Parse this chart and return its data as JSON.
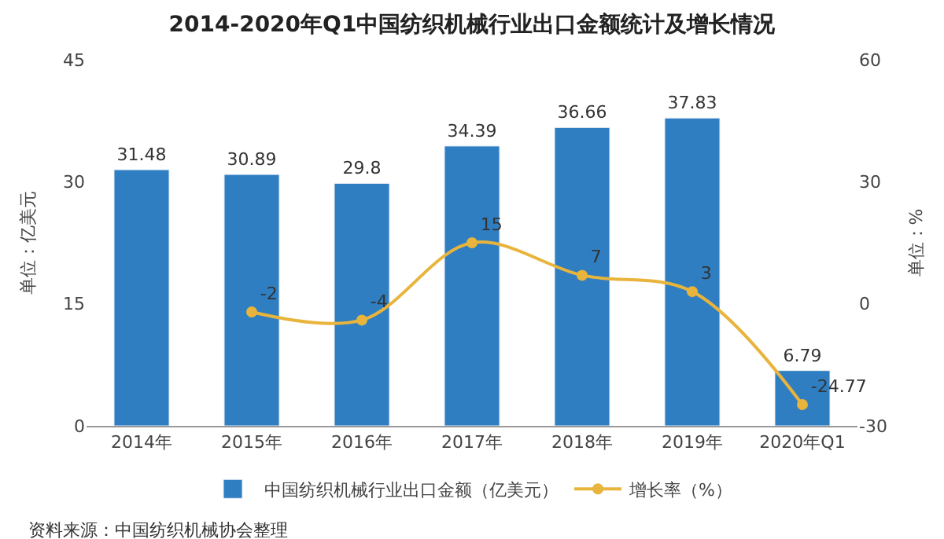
{
  "chart_data": {
    "type": "bar",
    "title": "2014-2020年Q1中国纺织机械行业出口金额统计及增长情况",
    "categories": [
      "2014年",
      "2015年",
      "2016年",
      "2017年",
      "2018年",
      "2019年",
      "2020年Q1"
    ],
    "series": [
      {
        "name": "中国纺织机械行业出口金额（亿美元）",
        "color": "#2f7ec2",
        "values": [
          31.48,
          30.89,
          29.8,
          34.39,
          36.66,
          37.83,
          6.79
        ]
      },
      {
        "name": "增长率（%）",
        "type": "line",
        "axis": "y2",
        "color": "#e8b43c",
        "marker": "circle",
        "values": [
          null,
          -2,
          -4,
          15,
          7,
          3,
          -24.77
        ]
      }
    ],
    "ylabel": "单位：亿美元",
    "y2label": "单位：%",
    "ylim": [
      0,
      45
    ],
    "yticks": [
      0,
      15,
      30,
      45
    ],
    "y2lim": [
      -30,
      60
    ],
    "y2ticks": [
      -30,
      0,
      30,
      60
    ],
    "data_labels": true,
    "legend": "bottom",
    "annotations": [
      "资料来源：中国纺织机械协会整理"
    ]
  }
}
